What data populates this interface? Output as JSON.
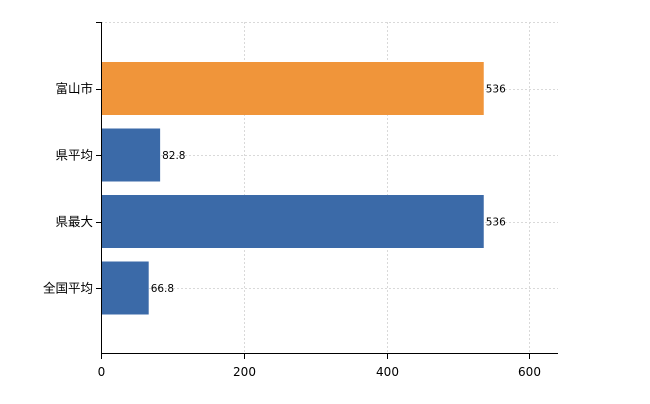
{
  "chart_data": {
    "type": "bar",
    "orientation": "horizontal",
    "categories": [
      "富山市",
      "県平均",
      "県最大",
      "全国平均"
    ],
    "values": [
      536,
      82.8,
      536,
      66.8
    ],
    "value_labels": [
      "536",
      "82.8",
      "536",
      "66.8"
    ],
    "bar_colors": [
      "#f0953a",
      "#3b6aa8",
      "#3b6aa8",
      "#3b6aa8"
    ],
    "xlim": [
      0,
      640
    ],
    "xticks": [
      0,
      200,
      400,
      600
    ],
    "xtick_labels": [
      "0",
      "200",
      "400",
      "600"
    ],
    "grid": true,
    "title": "",
    "xlabel": "",
    "ylabel": ""
  }
}
